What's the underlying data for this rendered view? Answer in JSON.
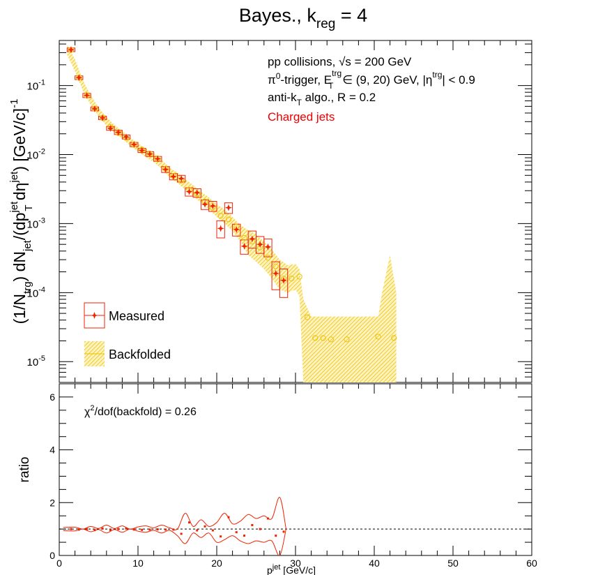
{
  "chart_data": {
    "type": "scatter",
    "title": {
      "main": "Bayes., k",
      "sub": "reg",
      "suffix": " = 4"
    },
    "annotations": {
      "line1": {
        "pre": "pp collisions, ",
        "sqrt": "√s",
        "post": " = 200 GeV"
      },
      "line2": {
        "a": "π",
        "a_sup": "0",
        "b": "-trigger, E",
        "b_sub": "T",
        "b_sup": "trg",
        "c": " ∈ (9, 20) GeV, |η",
        "c_sup": "trg",
        "d": "| < 0.9"
      },
      "line3": {
        "a": "anti-k",
        "a_sub": "T",
        "b": " algo., R = 0.2"
      },
      "line4": "Charged jets",
      "chi2": {
        "a": "χ",
        "a_sup": "2",
        "b": "/dof(backfold) = 0.26"
      }
    },
    "ylabel": {
      "p1": "(1/N",
      "s1": "trg",
      "p2": ") dN",
      "s2": "jet",
      "p3": "/(dp",
      "s3a": "jet",
      "s3b": "T",
      "p4": " dη",
      "s4": "jet",
      "p5": ") [GeV/c]",
      "s5": "-1"
    },
    "xlabel": {
      "p": "p",
      "sup": "jet",
      "sub": "T",
      "rest": " [GeV/c]"
    },
    "ratio_ylabel": "ratio",
    "legend": {
      "measured": "Measured",
      "backfolded": "Backfolded"
    },
    "xlim": [
      0,
      60
    ],
    "ylim_top": [
      5e-06,
      0.45
    ],
    "ylim_bottom": [
      0,
      6.5
    ],
    "x_ticks": [
      "0",
      "10",
      "20",
      "30",
      "40",
      "50",
      "60"
    ],
    "y_ticks_top": [
      {
        "base": "10",
        "exp": "-5",
        "value": 1e-05
      },
      {
        "base": "10",
        "exp": "-4",
        "value": 0.0001
      },
      {
        "base": "10",
        "exp": "-3",
        "value": 0.001
      },
      {
        "base": "10",
        "exp": "-2",
        "value": 0.01
      },
      {
        "base": "10",
        "exp": "-1",
        "value": 0.1
      }
    ],
    "y_ticks_bottom": [
      "0",
      "2",
      "4",
      "6"
    ],
    "measured": {
      "color": "#ee2200",
      "points": [
        {
          "x": 1.5,
          "w": 1.0,
          "y": 0.33,
          "lo": 0.31,
          "hi": 0.35
        },
        {
          "x": 2.5,
          "w": 1.0,
          "y": 0.13,
          "lo": 0.122,
          "hi": 0.138
        },
        {
          "x": 3.5,
          "w": 1.0,
          "y": 0.072,
          "lo": 0.067,
          "hi": 0.077
        },
        {
          "x": 4.5,
          "w": 1.0,
          "y": 0.046,
          "lo": 0.043,
          "hi": 0.049
        },
        {
          "x": 5.5,
          "w": 1.0,
          "y": 0.034,
          "lo": 0.032,
          "hi": 0.036
        },
        {
          "x": 6.5,
          "w": 1.0,
          "y": 0.024,
          "lo": 0.0225,
          "hi": 0.0255
        },
        {
          "x": 7.5,
          "w": 1.0,
          "y": 0.021,
          "lo": 0.0195,
          "hi": 0.0225
        },
        {
          "x": 8.5,
          "w": 1.0,
          "y": 0.018,
          "lo": 0.0168,
          "hi": 0.0192
        },
        {
          "x": 9.5,
          "w": 1.0,
          "y": 0.014,
          "lo": 0.013,
          "hi": 0.015
        },
        {
          "x": 10.5,
          "w": 1.0,
          "y": 0.0115,
          "lo": 0.0107,
          "hi": 0.0123
        },
        {
          "x": 11.5,
          "w": 1.0,
          "y": 0.0102,
          "lo": 0.0094,
          "hi": 0.011
        },
        {
          "x": 12.5,
          "w": 1.0,
          "y": 0.0087,
          "lo": 0.008,
          "hi": 0.0094
        },
        {
          "x": 13.5,
          "w": 1.0,
          "y": 0.0061,
          "lo": 0.0055,
          "hi": 0.0067
        },
        {
          "x": 14.5,
          "w": 1.0,
          "y": 0.0048,
          "lo": 0.0043,
          "hi": 0.0053
        },
        {
          "x": 15.5,
          "w": 1.0,
          "y": 0.0045,
          "lo": 0.004,
          "hi": 0.005
        },
        {
          "x": 16.5,
          "w": 1.0,
          "y": 0.0029,
          "lo": 0.0025,
          "hi": 0.0033
        },
        {
          "x": 17.5,
          "w": 1.0,
          "y": 0.0028,
          "lo": 0.0024,
          "hi": 0.0032
        },
        {
          "x": 18.5,
          "w": 1.0,
          "y": 0.0019,
          "lo": 0.0016,
          "hi": 0.0022
        },
        {
          "x": 19.5,
          "w": 1.0,
          "y": 0.0018,
          "lo": 0.0015,
          "hi": 0.0021
        },
        {
          "x": 20.5,
          "w": 1.0,
          "y": 0.00085,
          "lo": 0.00062,
          "hi": 0.0011
        },
        {
          "x": 21.5,
          "w": 1.0,
          "y": 0.0017,
          "lo": 0.0014,
          "hi": 0.002
        },
        {
          "x": 22.5,
          "w": 1.0,
          "y": 0.00082,
          "lo": 0.00066,
          "hi": 0.00098
        },
        {
          "x": 23.5,
          "w": 1.0,
          "y": 0.00047,
          "lo": 0.00036,
          "hi": 0.00058
        },
        {
          "x": 24.5,
          "w": 1.0,
          "y": 0.0006,
          "lo": 0.00044,
          "hi": 0.00078
        },
        {
          "x": 25.5,
          "w": 1.0,
          "y": 0.0005,
          "lo": 0.00037,
          "hi": 0.00065
        },
        {
          "x": 26.5,
          "w": 1.0,
          "y": 0.00046,
          "lo": 0.00033,
          "hi": 0.0006
        },
        {
          "x": 27.5,
          "w": 1.0,
          "y": 0.00019,
          "lo": 0.00011,
          "hi": 0.00028
        },
        {
          "x": 28.5,
          "w": 1.0,
          "y": 0.00015,
          "lo": 8.5e-05,
          "hi": 0.00022
        }
      ]
    },
    "backfolded": {
      "color": "#f0c000",
      "points": [
        {
          "x": 1.5,
          "y": 0.33
        },
        {
          "x": 2.5,
          "y": 0.13
        },
        {
          "x": 3.5,
          "y": 0.072
        },
        {
          "x": 4.5,
          "y": 0.046
        },
        {
          "x": 5.5,
          "y": 0.034
        },
        {
          "x": 6.5,
          "y": 0.025
        },
        {
          "x": 7.5,
          "y": 0.0205
        },
        {
          "x": 8.5,
          "y": 0.0175
        },
        {
          "x": 9.5,
          "y": 0.014
        },
        {
          "x": 10.5,
          "y": 0.0118
        },
        {
          "x": 11.5,
          "y": 0.0103
        },
        {
          "x": 12.5,
          "y": 0.0088
        },
        {
          "x": 13.5,
          "y": 0.0062
        },
        {
          "x": 14.5,
          "y": 0.0049
        },
        {
          "x": 15.5,
          "y": 0.0042
        },
        {
          "x": 16.5,
          "y": 0.0031
        },
        {
          "x": 17.5,
          "y": 0.0027
        },
        {
          "x": 18.5,
          "y": 0.0021
        },
        {
          "x": 19.5,
          "y": 0.0017
        },
        {
          "x": 20.5,
          "y": 0.0013
        },
        {
          "x": 21.5,
          "y": 0.00115
        },
        {
          "x": 22.5,
          "y": 0.0009
        },
        {
          "x": 23.5,
          "y": 0.00062
        },
        {
          "x": 24.5,
          "y": 0.00055
        },
        {
          "x": 25.5,
          "y": 0.00045
        },
        {
          "x": 26.5,
          "y": 0.00032
        },
        {
          "x": 27.5,
          "y": 0.00024
        },
        {
          "x": 28.5,
          "y": 0.00016
        },
        {
          "x": 29.5,
          "y": 0.00016
        },
        {
          "x": 30.5,
          "y": 0.00017
        },
        {
          "x": 31.5,
          "y": 4.4e-05
        },
        {
          "x": 32.5,
          "y": 2.2e-05
        },
        {
          "x": 33.5,
          "y": 2.2e-05
        },
        {
          "x": 34.5,
          "y": 2.1e-05
        },
        {
          "x": 36.5,
          "y": 2.1e-05
        },
        {
          "x": 40.5,
          "y": 2.3e-05
        },
        {
          "x": 42.5,
          "y": 2.2e-05
        }
      ],
      "band": [
        {
          "x": 1.0,
          "lo": 0.28,
          "hi": 0.39
        },
        {
          "x": 2.0,
          "lo": 0.16,
          "hi": 0.24
        },
        {
          "x": 3.0,
          "lo": 0.085,
          "hi": 0.12
        },
        {
          "x": 4.0,
          "lo": 0.052,
          "hi": 0.072
        },
        {
          "x": 5.0,
          "lo": 0.036,
          "hi": 0.048
        },
        {
          "x": 6.0,
          "lo": 0.026,
          "hi": 0.035
        },
        {
          "x": 7.0,
          "lo": 0.021,
          "hi": 0.027
        },
        {
          "x": 8.0,
          "lo": 0.017,
          "hi": 0.022
        },
        {
          "x": 9.0,
          "lo": 0.0135,
          "hi": 0.0175
        },
        {
          "x": 10.0,
          "lo": 0.011,
          "hi": 0.0145
        },
        {
          "x": 11.0,
          "lo": 0.0092,
          "hi": 0.0122
        },
        {
          "x": 12.0,
          "lo": 0.0078,
          "hi": 0.0104
        },
        {
          "x": 13.0,
          "lo": 0.0062,
          "hi": 0.0084
        },
        {
          "x": 14.0,
          "lo": 0.0047,
          "hi": 0.0065
        },
        {
          "x": 15.0,
          "lo": 0.0039,
          "hi": 0.0055
        },
        {
          "x": 16.0,
          "lo": 0.0031,
          "hi": 0.0044
        },
        {
          "x": 17.0,
          "lo": 0.0025,
          "hi": 0.0036
        },
        {
          "x": 18.0,
          "lo": 0.002,
          "hi": 0.0029
        },
        {
          "x": 19.0,
          "lo": 0.0016,
          "hi": 0.0024
        },
        {
          "x": 20.0,
          "lo": 0.00125,
          "hi": 0.0019
        },
        {
          "x": 21.0,
          "lo": 0.001,
          "hi": 0.0016
        },
        {
          "x": 22.0,
          "lo": 0.00078,
          "hi": 0.00125
        },
        {
          "x": 23.0,
          "lo": 0.00055,
          "hi": 0.00095
        },
        {
          "x": 24.0,
          "lo": 0.00035,
          "hi": 0.0008
        },
        {
          "x": 25.0,
          "lo": 0.00028,
          "hi": 0.0007
        },
        {
          "x": 26.0,
          "lo": 0.00022,
          "hi": 0.00055
        },
        {
          "x": 27.0,
          "lo": 0.00016,
          "hi": 0.00042
        },
        {
          "x": 28.0,
          "lo": 0.00011,
          "hi": 0.0003
        },
        {
          "x": 29.0,
          "lo": 0.0001,
          "hi": 0.00025
        },
        {
          "x": 30.0,
          "lo": 0.00011,
          "hi": 0.00026
        },
        {
          "x": 30.5,
          "lo": 9e-05,
          "hi": 0.00022
        },
        {
          "x": 31.0,
          "lo": 5e-06,
          "hi": 8e-05
        },
        {
          "x": 32.0,
          "lo": 5e-06,
          "hi": 4.5e-05
        },
        {
          "x": 40.5,
          "lo": 5e-06,
          "hi": 4.5e-05
        },
        {
          "x": 41.0,
          "lo": 5e-06,
          "hi": 0.0001
        },
        {
          "x": 42.0,
          "lo": 5e-06,
          "hi": 0.00035
        },
        {
          "x": 42.8,
          "lo": 5e-06,
          "hi": 0.0001
        }
      ]
    },
    "ratio": {
      "reference": 1.0,
      "points": [
        {
          "x": 1.5,
          "y": 1.0
        },
        {
          "x": 2.5,
          "y": 0.98
        },
        {
          "x": 3.5,
          "y": 1.0
        },
        {
          "x": 4.5,
          "y": 0.96
        },
        {
          "x": 5.5,
          "y": 1.02
        },
        {
          "x": 6.5,
          "y": 0.96
        },
        {
          "x": 7.5,
          "y": 1.0
        },
        {
          "x": 8.5,
          "y": 1.02
        },
        {
          "x": 9.5,
          "y": 0.98
        },
        {
          "x": 10.5,
          "y": 0.97
        },
        {
          "x": 11.5,
          "y": 0.98
        },
        {
          "x": 12.5,
          "y": 0.99
        },
        {
          "x": 13.5,
          "y": 0.98
        },
        {
          "x": 14.5,
          "y": 0.98
        },
        {
          "x": 15.5,
          "y": 0.82
        },
        {
          "x": 16.5,
          "y": 1.25
        },
        {
          "x": 17.5,
          "y": 0.95
        },
        {
          "x": 18.5,
          "y": 1.1
        },
        {
          "x": 19.5,
          "y": 0.95
        },
        {
          "x": 20.5,
          "y": 0.72
        },
        {
          "x": 21.5,
          "y": 1.45
        },
        {
          "x": 22.5,
          "y": 0.88
        },
        {
          "x": 23.5,
          "y": 0.75
        },
        {
          "x": 24.5,
          "y": 1.15
        },
        {
          "x": 25.5,
          "y": 1.0
        },
        {
          "x": 26.5,
          "y": 1.4
        },
        {
          "x": 27.5,
          "y": 0.75
        },
        {
          "x": 28.5,
          "y": 0.9
        }
      ],
      "band_upper": [
        {
          "x": 0.5,
          "y": 1.06
        },
        {
          "x": 2.0,
          "y": 1.07
        },
        {
          "x": 3.0,
          "y": 1.0
        },
        {
          "x": 4.0,
          "y": 1.1
        },
        {
          "x": 5.0,
          "y": 1.02
        },
        {
          "x": 6.0,
          "y": 1.15
        },
        {
          "x": 7.0,
          "y": 1.02
        },
        {
          "x": 8.0,
          "y": 1.12
        },
        {
          "x": 9.0,
          "y": 1.0
        },
        {
          "x": 10.0,
          "y": 1.08
        },
        {
          "x": 11.0,
          "y": 1.12
        },
        {
          "x": 12.0,
          "y": 1.05
        },
        {
          "x": 13.0,
          "y": 1.15
        },
        {
          "x": 14.0,
          "y": 1.05
        },
        {
          "x": 15.0,
          "y": 1.0
        },
        {
          "x": 16.0,
          "y": 1.6
        },
        {
          "x": 17.0,
          "y": 1.1
        },
        {
          "x": 18.0,
          "y": 1.35
        },
        {
          "x": 19.0,
          "y": 1.1
        },
        {
          "x": 20.0,
          "y": 1.25
        },
        {
          "x": 21.0,
          "y": 1.6
        },
        {
          "x": 22.0,
          "y": 1.2
        },
        {
          "x": 23.0,
          "y": 1.3
        },
        {
          "x": 24.0,
          "y": 1.55
        },
        {
          "x": 25.0,
          "y": 1.4
        },
        {
          "x": 26.0,
          "y": 1.5
        },
        {
          "x": 27.0,
          "y": 1.4
        },
        {
          "x": 28.0,
          "y": 2.2
        },
        {
          "x": 28.8,
          "y": 1.0
        }
      ],
      "band_lower": [
        {
          "x": 0.5,
          "y": 0.94
        },
        {
          "x": 2.0,
          "y": 0.93
        },
        {
          "x": 3.0,
          "y": 1.0
        },
        {
          "x": 4.0,
          "y": 0.9
        },
        {
          "x": 5.0,
          "y": 0.98
        },
        {
          "x": 6.0,
          "y": 0.85
        },
        {
          "x": 7.0,
          "y": 0.98
        },
        {
          "x": 8.0,
          "y": 0.88
        },
        {
          "x": 9.0,
          "y": 1.0
        },
        {
          "x": 10.0,
          "y": 0.92
        },
        {
          "x": 11.0,
          "y": 0.88
        },
        {
          "x": 12.0,
          "y": 0.95
        },
        {
          "x": 13.0,
          "y": 0.85
        },
        {
          "x": 14.0,
          "y": 0.95
        },
        {
          "x": 15.0,
          "y": 0.75
        },
        {
          "x": 16.0,
          "y": 0.45
        },
        {
          "x": 17.0,
          "y": 0.85
        },
        {
          "x": 18.0,
          "y": 0.68
        },
        {
          "x": 19.0,
          "y": 0.85
        },
        {
          "x": 20.0,
          "y": 0.5
        },
        {
          "x": 21.0,
          "y": 0.6
        },
        {
          "x": 22.0,
          "y": 0.75
        },
        {
          "x": 23.0,
          "y": 0.55
        },
        {
          "x": 24.0,
          "y": 0.45
        },
        {
          "x": 25.0,
          "y": 0.55
        },
        {
          "x": 26.0,
          "y": 0.5
        },
        {
          "x": 27.0,
          "y": 0.55
        },
        {
          "x": 28.0,
          "y": 0.0
        },
        {
          "x": 28.8,
          "y": 1.0
        }
      ]
    }
  }
}
